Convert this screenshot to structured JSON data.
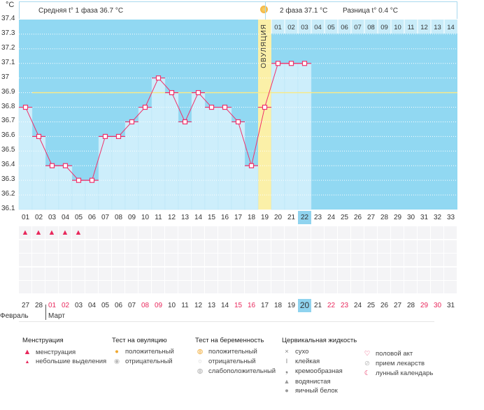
{
  "unit": "°C",
  "header": {
    "phase1": "Средняя t° 1 фаза 36.7 °C",
    "phase2": "2 фаза 37.1 °C",
    "diff": "Разница t° 0.4 °C"
  },
  "ovulation_label": "ОВУЛЯЦИЯ",
  "chart_data": {
    "type": "bar",
    "y_ticks": [
      "37.4",
      "37.3",
      "37.2",
      "37.1",
      "37",
      "36.9",
      "36.8",
      "36.7",
      "36.6",
      "36.5",
      "36.4",
      "36.3",
      "36.2",
      "36.1"
    ],
    "ylim": [
      36.1,
      37.4
    ],
    "cover_line": 36.9,
    "ovulation_day": 19,
    "cycle_days": [
      "01",
      "02",
      "03",
      "04",
      "05",
      "06",
      "07",
      "08",
      "09",
      "10",
      "11",
      "12",
      "13",
      "14",
      "15",
      "16",
      "17",
      "18",
      "19",
      "20",
      "21",
      "22",
      "23",
      "24",
      "25",
      "26",
      "27",
      "28",
      "29",
      "30",
      "31",
      "32",
      "33"
    ],
    "temperatures": [
      36.8,
      36.6,
      36.4,
      36.4,
      36.3,
      36.3,
      36.6,
      36.6,
      36.7,
      36.8,
      37.0,
      36.9,
      36.7,
      36.9,
      36.8,
      36.8,
      36.7,
      36.4,
      36.8,
      37.1,
      37.1,
      37.1
    ],
    "luteal_days": [
      "01",
      "02",
      "03",
      "04",
      "05",
      "06",
      "07",
      "08",
      "09",
      "10",
      "11",
      "12",
      "13",
      "14"
    ]
  },
  "current_cycle_day": "22",
  "menstruation_days": [
    1,
    2,
    3,
    4,
    5
  ],
  "dates": [
    "27",
    "28",
    "01",
    "02",
    "03",
    "04",
    "05",
    "06",
    "07",
    "08",
    "09",
    "10",
    "11",
    "12",
    "13",
    "14",
    "15",
    "16",
    "17",
    "18",
    "19",
    "20",
    "21",
    "22",
    "23",
    "24",
    "25",
    "26",
    "27",
    "28",
    "29",
    "30",
    "31"
  ],
  "weekend_dates_idx": [
    2,
    3,
    9,
    10,
    16,
    17,
    23,
    24,
    30,
    31
  ],
  "today_date_idx": 21,
  "months": {
    "prev": "Февраль",
    "cur": "Март"
  },
  "legend": {
    "menstruation": {
      "title": "Менструация",
      "items": [
        "менструация",
        "небольшие выделения"
      ]
    },
    "ovulation_test": {
      "title": "Тест на овуляцию",
      "items": [
        "положительный",
        "отрицательный"
      ]
    },
    "pregnancy_test": {
      "title": "Тест на беременность",
      "items": [
        "положительный",
        "отрицательный",
        "слабоположительный"
      ]
    },
    "cervical": {
      "title": "Цервикальная жидкость",
      "items": [
        "сухо",
        "клейкая",
        "кремообразная",
        "водянистая",
        "яичный белок"
      ]
    },
    "other": {
      "items": [
        "половой акт",
        "прием лекарств",
        "лунный календарь"
      ]
    }
  },
  "colors": {
    "bg": "#91d8f2",
    "bar": "#cdeefb",
    "line": "#f0306a",
    "cover": "#f7e98a",
    "ovulation": "#fbf0a8"
  }
}
